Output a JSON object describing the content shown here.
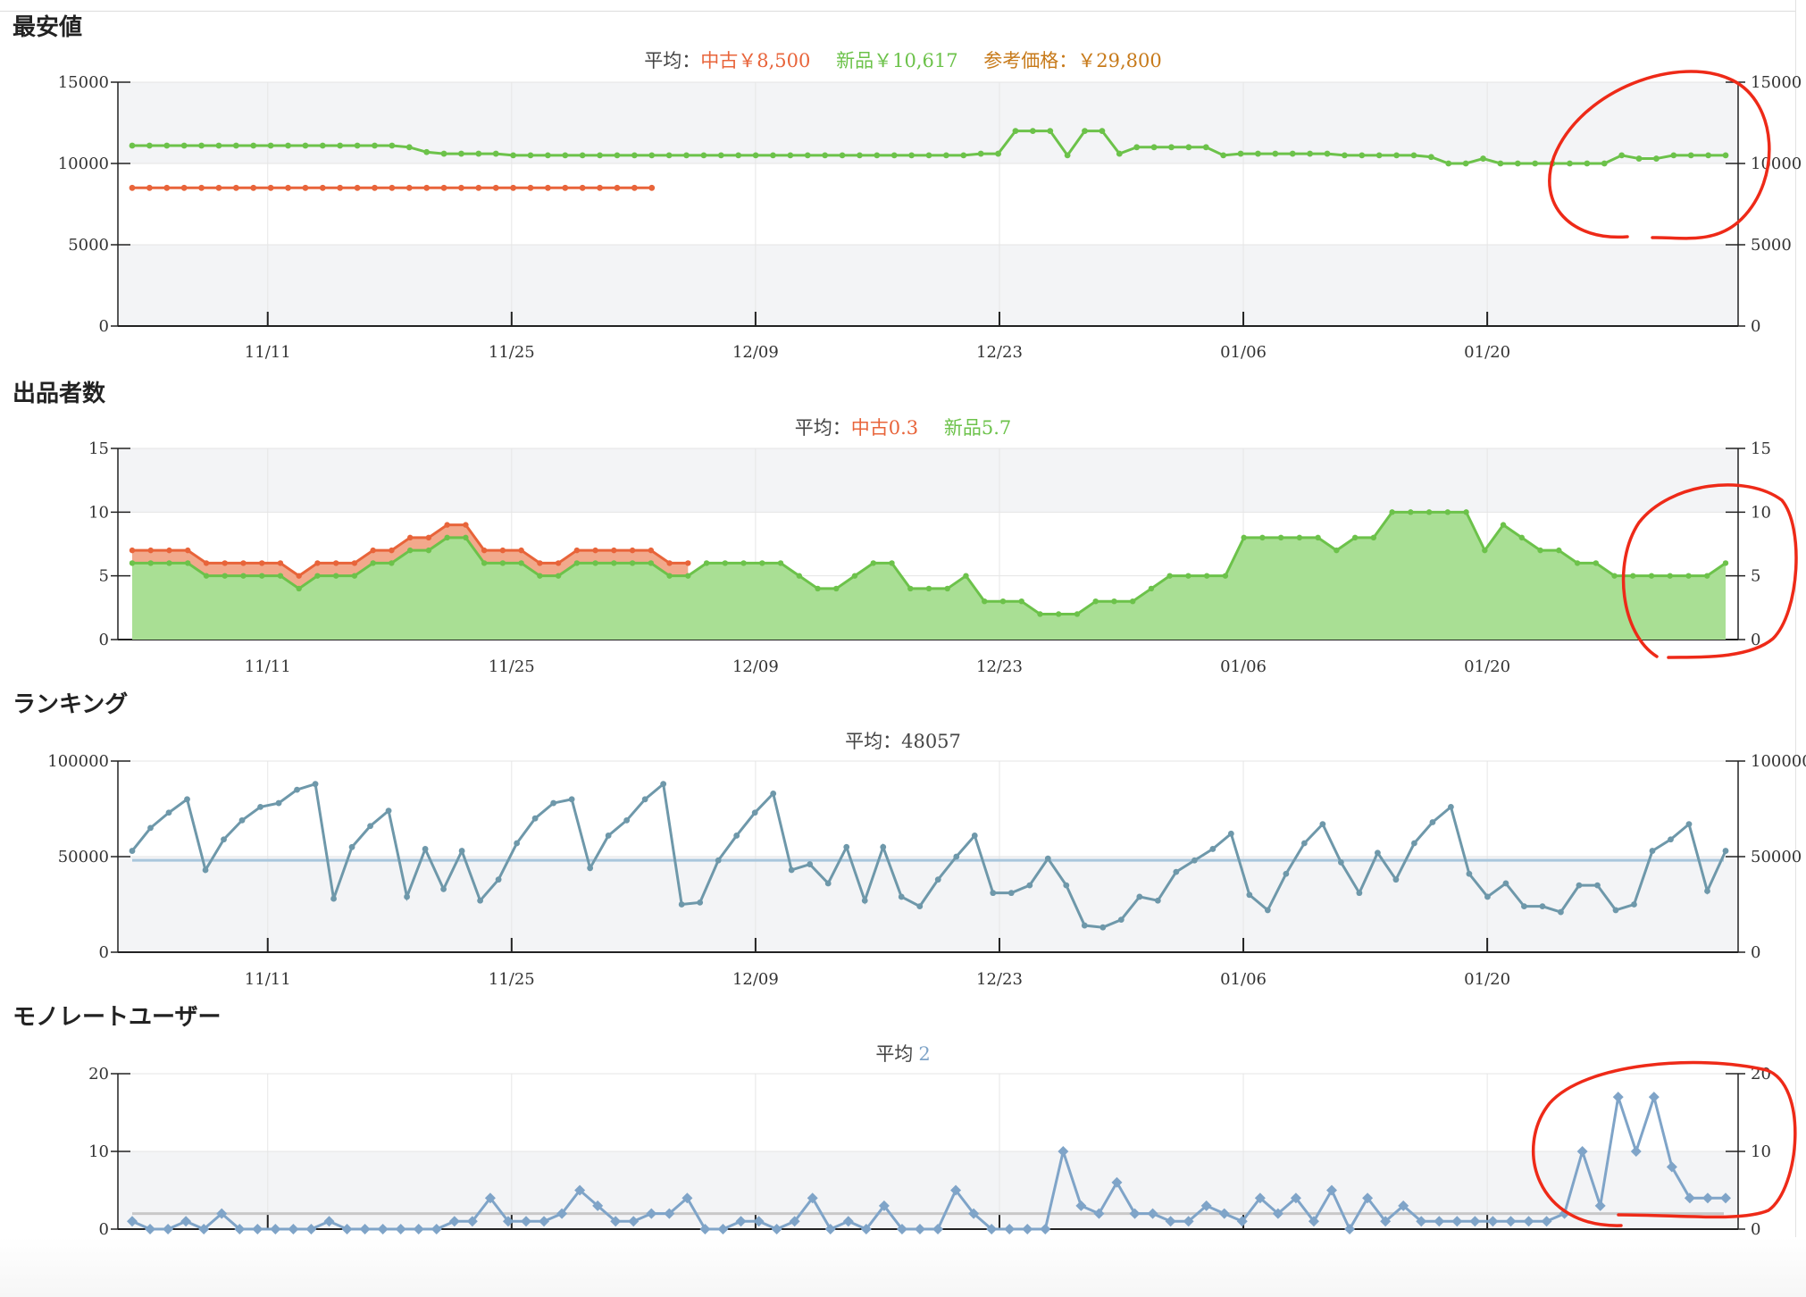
{
  "colors": {
    "used": "#e8643a",
    "new": "#6cc24a",
    "reference": "#c77a1a",
    "rank": "#6e98aa",
    "user": "#7fa4c8",
    "annotation": "#ee2a18"
  },
  "sections": {
    "price": {
      "title": "最安値",
      "avg_prefix": "平均：",
      "avg_used": "中古￥8,500",
      "avg_new": "新品￥10,617",
      "avg_ref": "参考価格：￥29,800"
    },
    "sellers": {
      "title": "出品者数",
      "avg_prefix": "平均：",
      "avg_used": "中古0.3",
      "avg_new": "新品5.7"
    },
    "ranking": {
      "title": "ランキング",
      "avg_text": "平均：48057"
    },
    "users": {
      "title": "モノレートユーザー",
      "avg_prefix": "平均",
      "avg_value": "2"
    }
  },
  "chart_data": [
    {
      "type": "line",
      "name": "price",
      "x_ticks": [
        "11/11",
        "11/25",
        "12/09",
        "12/23",
        "01/06",
        "01/20"
      ],
      "yticks": [
        0,
        5000,
        10000,
        15000
      ],
      "ylim": [
        0,
        15000
      ],
      "shaded_bands": [
        [
          0,
          5000
        ],
        [
          10000,
          15000
        ]
      ],
      "series": [
        {
          "name": "中古",
          "color_key": "used",
          "start_index": 0,
          "values": [
            8500,
            8500,
            8500,
            8500,
            8500,
            8500,
            8500,
            8500,
            8500,
            8500,
            8500,
            8500,
            8500,
            8500,
            8500,
            8500,
            8500,
            8500,
            8500,
            8500,
            8500,
            8500,
            8500,
            8500,
            8500,
            8500,
            8500,
            8500,
            8500,
            8500,
            8500
          ]
        },
        {
          "name": "新品",
          "color_key": "new",
          "start_index": 0,
          "values": [
            11100,
            11100,
            11100,
            11100,
            11100,
            11100,
            11100,
            11100,
            11100,
            11100,
            11100,
            11100,
            11100,
            11100,
            11100,
            11100,
            11000,
            10700,
            10600,
            10600,
            10600,
            10600,
            10500,
            10500,
            10500,
            10500,
            10500,
            10500,
            10500,
            10500,
            10500,
            10500,
            10500,
            10500,
            10500,
            10500,
            10500,
            10500,
            10500,
            10500,
            10500,
            10500,
            10500,
            10500,
            10500,
            10500,
            10500,
            10500,
            10500,
            10600,
            10600,
            12000,
            12000,
            12000,
            10500,
            12000,
            12000,
            10600,
            11000,
            11000,
            11000,
            11000,
            11000,
            10500,
            10600,
            10600,
            10600,
            10600,
            10600,
            10600,
            10500,
            10500,
            10500,
            10500,
            10500,
            10400,
            10000,
            10000,
            10300,
            10000,
            10000,
            10000,
            10000,
            10000,
            10000,
            10000,
            10500,
            10300,
            10300,
            10500,
            10500,
            10500,
            10500
          ]
        }
      ]
    },
    {
      "type": "area",
      "name": "sellers",
      "x_ticks": [
        "11/11",
        "11/25",
        "12/09",
        "12/23",
        "01/06",
        "01/20"
      ],
      "yticks": [
        0,
        5,
        10,
        15
      ],
      "ylim": [
        0,
        15
      ],
      "shaded_bands": [
        [
          10,
          15
        ]
      ],
      "series": [
        {
          "name": "中古",
          "color_key": "used",
          "stacked_on_new": true,
          "start_index": 0,
          "values": [
            1,
            1,
            1,
            1,
            1,
            1,
            1,
            1,
            1,
            1,
            1,
            1,
            1,
            1,
            1,
            1,
            1,
            1,
            1,
            1,
            1,
            1,
            1,
            1,
            1,
            1,
            1,
            1,
            1,
            1,
            1
          ]
        },
        {
          "name": "新品",
          "color_key": "new",
          "start_index": 0,
          "values": [
            6,
            6,
            6,
            6,
            5,
            5,
            5,
            5,
            5,
            4,
            5,
            5,
            5,
            6,
            6,
            7,
            7,
            8,
            8,
            6,
            6,
            6,
            5,
            5,
            6,
            6,
            6,
            6,
            6,
            5,
            5,
            6,
            6,
            6,
            6,
            6,
            5,
            4,
            4,
            5,
            6,
            6,
            4,
            4,
            4,
            5,
            3,
            3,
            3,
            2,
            2,
            2,
            3,
            3,
            3,
            4,
            5,
            5,
            5,
            5,
            8,
            8,
            8,
            8,
            8,
            7,
            8,
            8,
            10,
            10,
            10,
            10,
            10,
            7,
            9,
            8,
            7,
            7,
            6,
            6,
            5,
            5,
            5,
            5,
            5,
            5,
            6
          ]
        }
      ]
    },
    {
      "type": "line",
      "name": "ranking",
      "x_ticks": [
        "11/11",
        "11/25",
        "12/09",
        "12/23",
        "01/06",
        "01/20"
      ],
      "yticks": [
        0,
        50000,
        100000
      ],
      "ylim": [
        0,
        100000
      ],
      "average": 48057,
      "shaded_bands": [
        [
          0,
          50000
        ]
      ],
      "series": [
        {
          "name": "ランキング",
          "color_key": "rank",
          "values": [
            53000,
            65000,
            73000,
            80000,
            43000,
            59000,
            69000,
            76000,
            78000,
            85000,
            88000,
            28000,
            55000,
            66000,
            74000,
            29000,
            54000,
            33000,
            53000,
            27000,
            38000,
            57000,
            70000,
            78000,
            80000,
            44000,
            61000,
            69000,
            80000,
            88000,
            25000,
            26000,
            48000,
            61000,
            73000,
            83000,
            43000,
            46000,
            36000,
            55000,
            27000,
            55000,
            29000,
            24000,
            38000,
            50000,
            61000,
            31000,
            31000,
            35000,
            49000,
            35000,
            14000,
            13000,
            17000,
            29000,
            27000,
            42000,
            48000,
            54000,
            62000,
            30000,
            22000,
            41000,
            57000,
            67000,
            47000,
            31000,
            52000,
            38000,
            57000,
            68000,
            76000,
            41000,
            29000,
            36000,
            24000,
            24000,
            21000,
            35000,
            35000,
            22000,
            25000,
            53000,
            59000,
            67000,
            32000,
            53000
          ]
        }
      ]
    },
    {
      "type": "line",
      "name": "users",
      "x_ticks": [],
      "yticks": [
        0,
        10,
        20
      ],
      "ylim": [
        0,
        20
      ],
      "average": 2,
      "shaded_bands": [
        [
          0,
          10
        ]
      ],
      "series": [
        {
          "name": "モノレートユーザー",
          "color_key": "user",
          "values": [
            1,
            0,
            0,
            1,
            0,
            2,
            0,
            0,
            0,
            0,
            0,
            1,
            0,
            0,
            0,
            0,
            0,
            0,
            1,
            1,
            4,
            1,
            1,
            1,
            2,
            5,
            3,
            1,
            1,
            2,
            2,
            4,
            0,
            0,
            1,
            1,
            0,
            1,
            4,
            0,
            1,
            0,
            3,
            0,
            0,
            0,
            5,
            2,
            0,
            0,
            0,
            0,
            10,
            3,
            2,
            6,
            2,
            2,
            1,
            1,
            3,
            2,
            1,
            4,
            2,
            4,
            1,
            5,
            0,
            4,
            1,
            3,
            1,
            1,
            1,
            1,
            1,
            1,
            1,
            1,
            2,
            10,
            3,
            17,
            10,
            17,
            8,
            4,
            4,
            4
          ]
        }
      ]
    }
  ]
}
